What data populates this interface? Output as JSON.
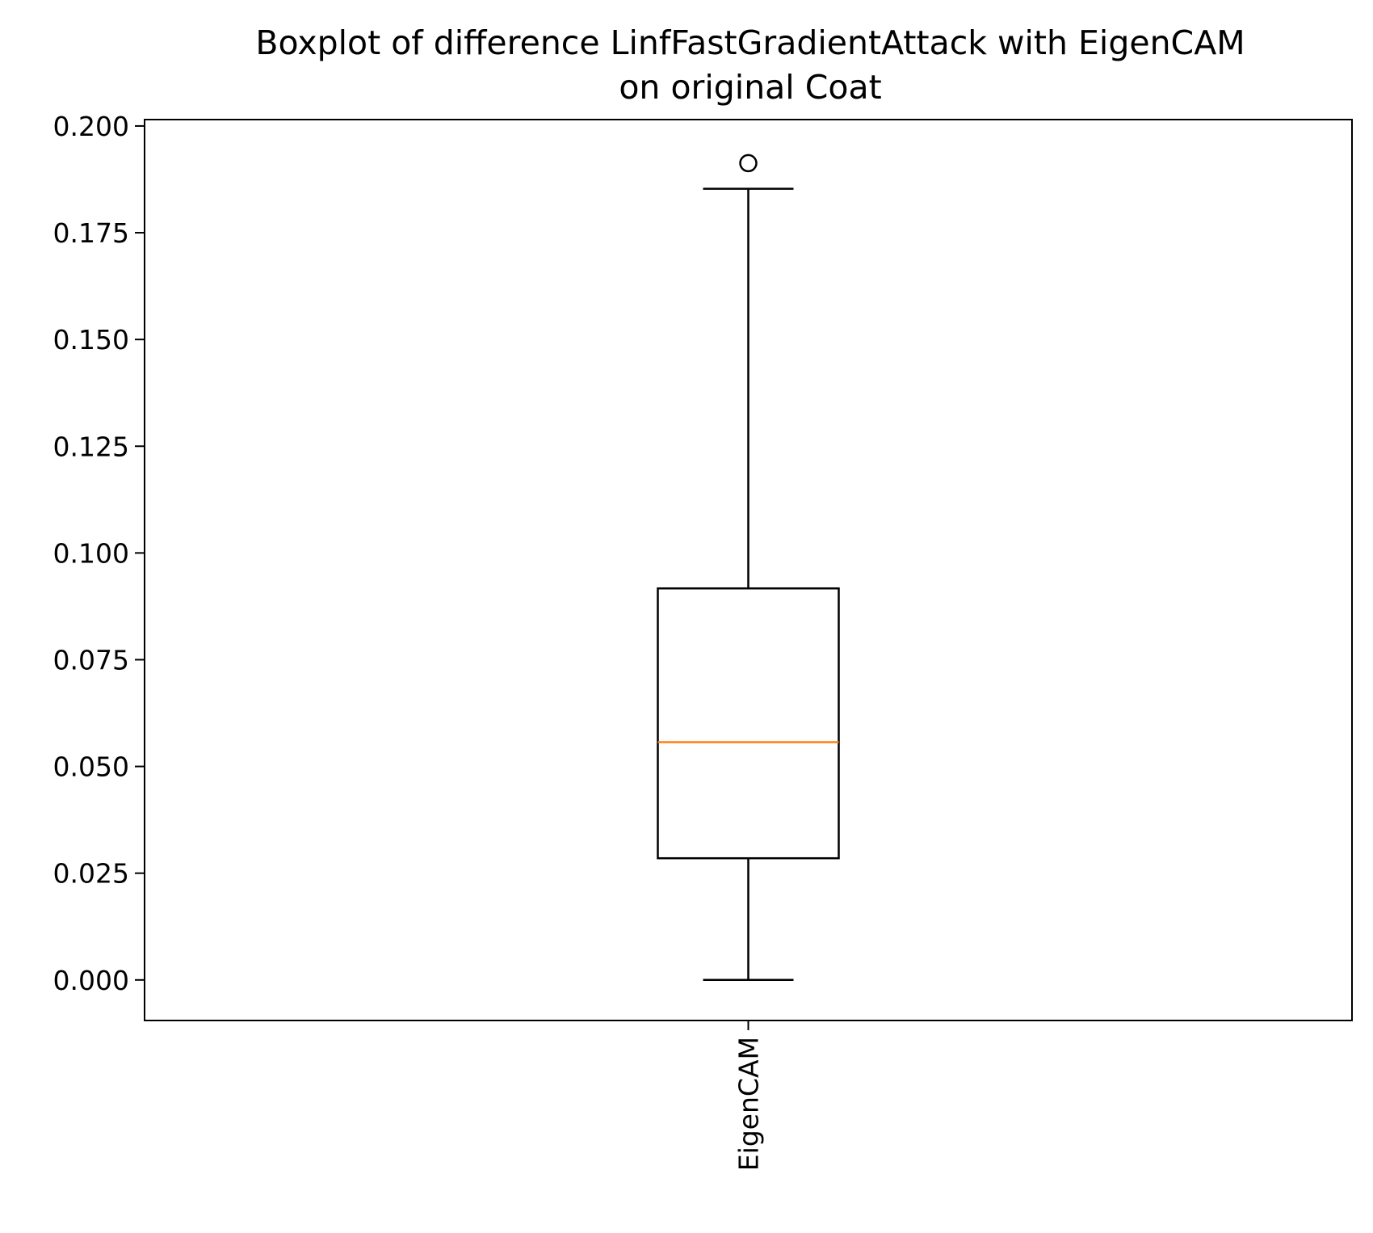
{
  "chart_data": {
    "type": "box",
    "title_lines": [
      "Boxplot of difference LinfFastGradientAttack with EigenCAM",
      "on original Coat"
    ],
    "xlabel": "",
    "ylabel": "",
    "categories": [
      "EigenCAM"
    ],
    "boxes": [
      {
        "name": "EigenCAM",
        "whisker_low": 0.0,
        "q1": 0.0285,
        "median": 0.0557,
        "q3": 0.0917,
        "whisker_high": 0.1853,
        "outliers": [
          0.1913
        ]
      }
    ],
    "ylim": [
      -0.0095,
      0.2015
    ],
    "yticks": [
      0.0,
      0.025,
      0.05,
      0.075,
      0.1,
      0.125,
      0.15,
      0.175,
      0.2
    ],
    "ytick_labels": [
      "0.000",
      "0.025",
      "0.050",
      "0.075",
      "0.100",
      "0.125",
      "0.150",
      "0.175",
      "0.200"
    ],
    "grid": false,
    "legend": "none",
    "colors": {
      "box": "#000000",
      "median": "#ff7f0e",
      "outlier": "#000000"
    }
  }
}
